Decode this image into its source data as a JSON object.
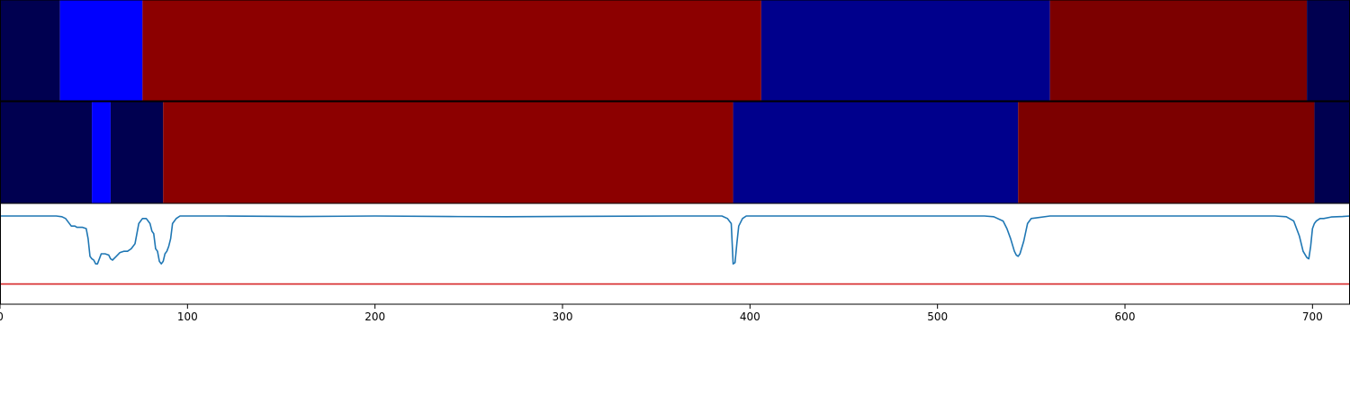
{
  "chart_data": [
    {
      "type": "heatmap",
      "name": "segmentation-track-top",
      "segments": [
        {
          "start": 0,
          "end": 32,
          "color": "#000050"
        },
        {
          "start": 32,
          "end": 76,
          "color": "#0000ff"
        },
        {
          "start": 76,
          "end": 406,
          "color": "#8c0000"
        },
        {
          "start": 406,
          "end": 560,
          "color": "#00008c"
        },
        {
          "start": 560,
          "end": 697,
          "color": "#7c0000"
        },
        {
          "start": 697,
          "end": 720,
          "color": "#000050"
        }
      ]
    },
    {
      "type": "heatmap",
      "name": "segmentation-track-bottom",
      "segments": [
        {
          "start": 0,
          "end": 49,
          "color": "#000050"
        },
        {
          "start": 49,
          "end": 59,
          "color": "#0000ff"
        },
        {
          "start": 59,
          "end": 87,
          "color": "#000050"
        },
        {
          "start": 87,
          "end": 391,
          "color": "#8c0000"
        },
        {
          "start": 391,
          "end": 543,
          "color": "#00008c"
        },
        {
          "start": 543,
          "end": 701,
          "color": "#7c0000"
        },
        {
          "start": 701,
          "end": 720,
          "color": "#000050"
        }
      ]
    },
    {
      "type": "line",
      "name": "boundary-score",
      "xlim": [
        0,
        720
      ],
      "ylim": [
        -0.35,
        0.05
      ],
      "xticks": [
        0,
        100,
        200,
        300,
        400,
        500,
        600,
        700
      ],
      "threshold": -0.27,
      "series": [
        {
          "name": "score",
          "color": "#1f77b4",
          "x": [
            0,
            30,
            33,
            35,
            38,
            40,
            41,
            44,
            46,
            47,
            48,
            49,
            50,
            51,
            52,
            54,
            56,
            58,
            59,
            60,
            62,
            64,
            66,
            68,
            70,
            72,
            74,
            76,
            78,
            80,
            81,
            82,
            83,
            84,
            85,
            86,
            87,
            88,
            89,
            90,
            91,
            92,
            94,
            96,
            100,
            120,
            160,
            200,
            240,
            270,
            320,
            360,
            385,
            388,
            390,
            391,
            392,
            393,
            394,
            396,
            398,
            400,
            450,
            500,
            525,
            530,
            535,
            537,
            539,
            541,
            542,
            543,
            544,
            546,
            548,
            550,
            560,
            640,
            680,
            686,
            690,
            693,
            695,
            697,
            698,
            699,
            700,
            701,
            702,
            704,
            706,
            710,
            716,
            720
          ],
          "y": [
            0,
            0,
            -0.003,
            -0.01,
            -0.04,
            -0.04,
            -0.045,
            -0.045,
            -0.05,
            -0.09,
            -0.16,
            -0.17,
            -0.175,
            -0.19,
            -0.19,
            -0.15,
            -0.15,
            -0.155,
            -0.17,
            -0.175,
            -0.16,
            -0.145,
            -0.14,
            -0.14,
            -0.13,
            -0.11,
            -0.03,
            -0.01,
            -0.01,
            -0.03,
            -0.06,
            -0.07,
            -0.13,
            -0.14,
            -0.18,
            -0.19,
            -0.18,
            -0.15,
            -0.14,
            -0.12,
            -0.09,
            -0.03,
            -0.01,
            0,
            0,
            0,
            -0.002,
            0,
            -0.002,
            -0.003,
            -0.001,
            0,
            0,
            -0.01,
            -0.03,
            -0.19,
            -0.185,
            -0.11,
            -0.04,
            -0.01,
            0,
            0,
            0,
            0,
            0,
            -0.003,
            -0.02,
            -0.05,
            -0.09,
            -0.14,
            -0.155,
            -0.16,
            -0.15,
            -0.1,
            -0.03,
            -0.01,
            0,
            0,
            0,
            -0.003,
            -0.02,
            -0.08,
            -0.14,
            -0.165,
            -0.17,
            -0.12,
            -0.05,
            -0.03,
            -0.02,
            -0.01,
            -0.01,
            -0.004,
            -0.002,
            0
          ]
        }
      ]
    }
  ]
}
